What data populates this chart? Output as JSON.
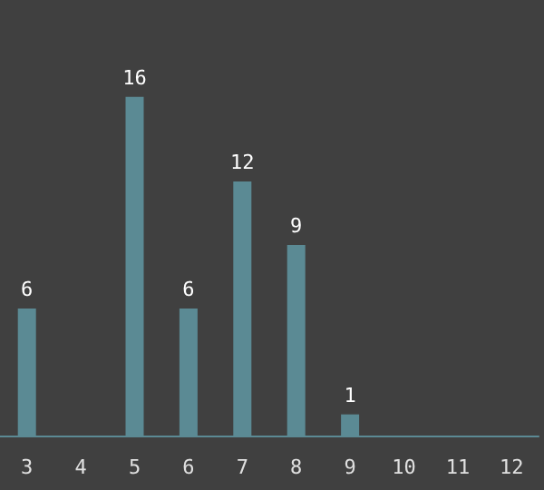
{
  "chart_data": {
    "type": "bar",
    "categories": [
      "3",
      "4",
      "5",
      "6",
      "7",
      "8",
      "9",
      "10",
      "11",
      "12"
    ],
    "values": [
      6,
      0,
      16,
      6,
      12,
      9,
      1,
      0,
      0,
      0
    ],
    "value_labels": [
      "6",
      null,
      "16",
      "6",
      "12",
      "9",
      "1",
      null,
      null,
      null
    ],
    "color": "#5b8a94",
    "grid": false
  }
}
